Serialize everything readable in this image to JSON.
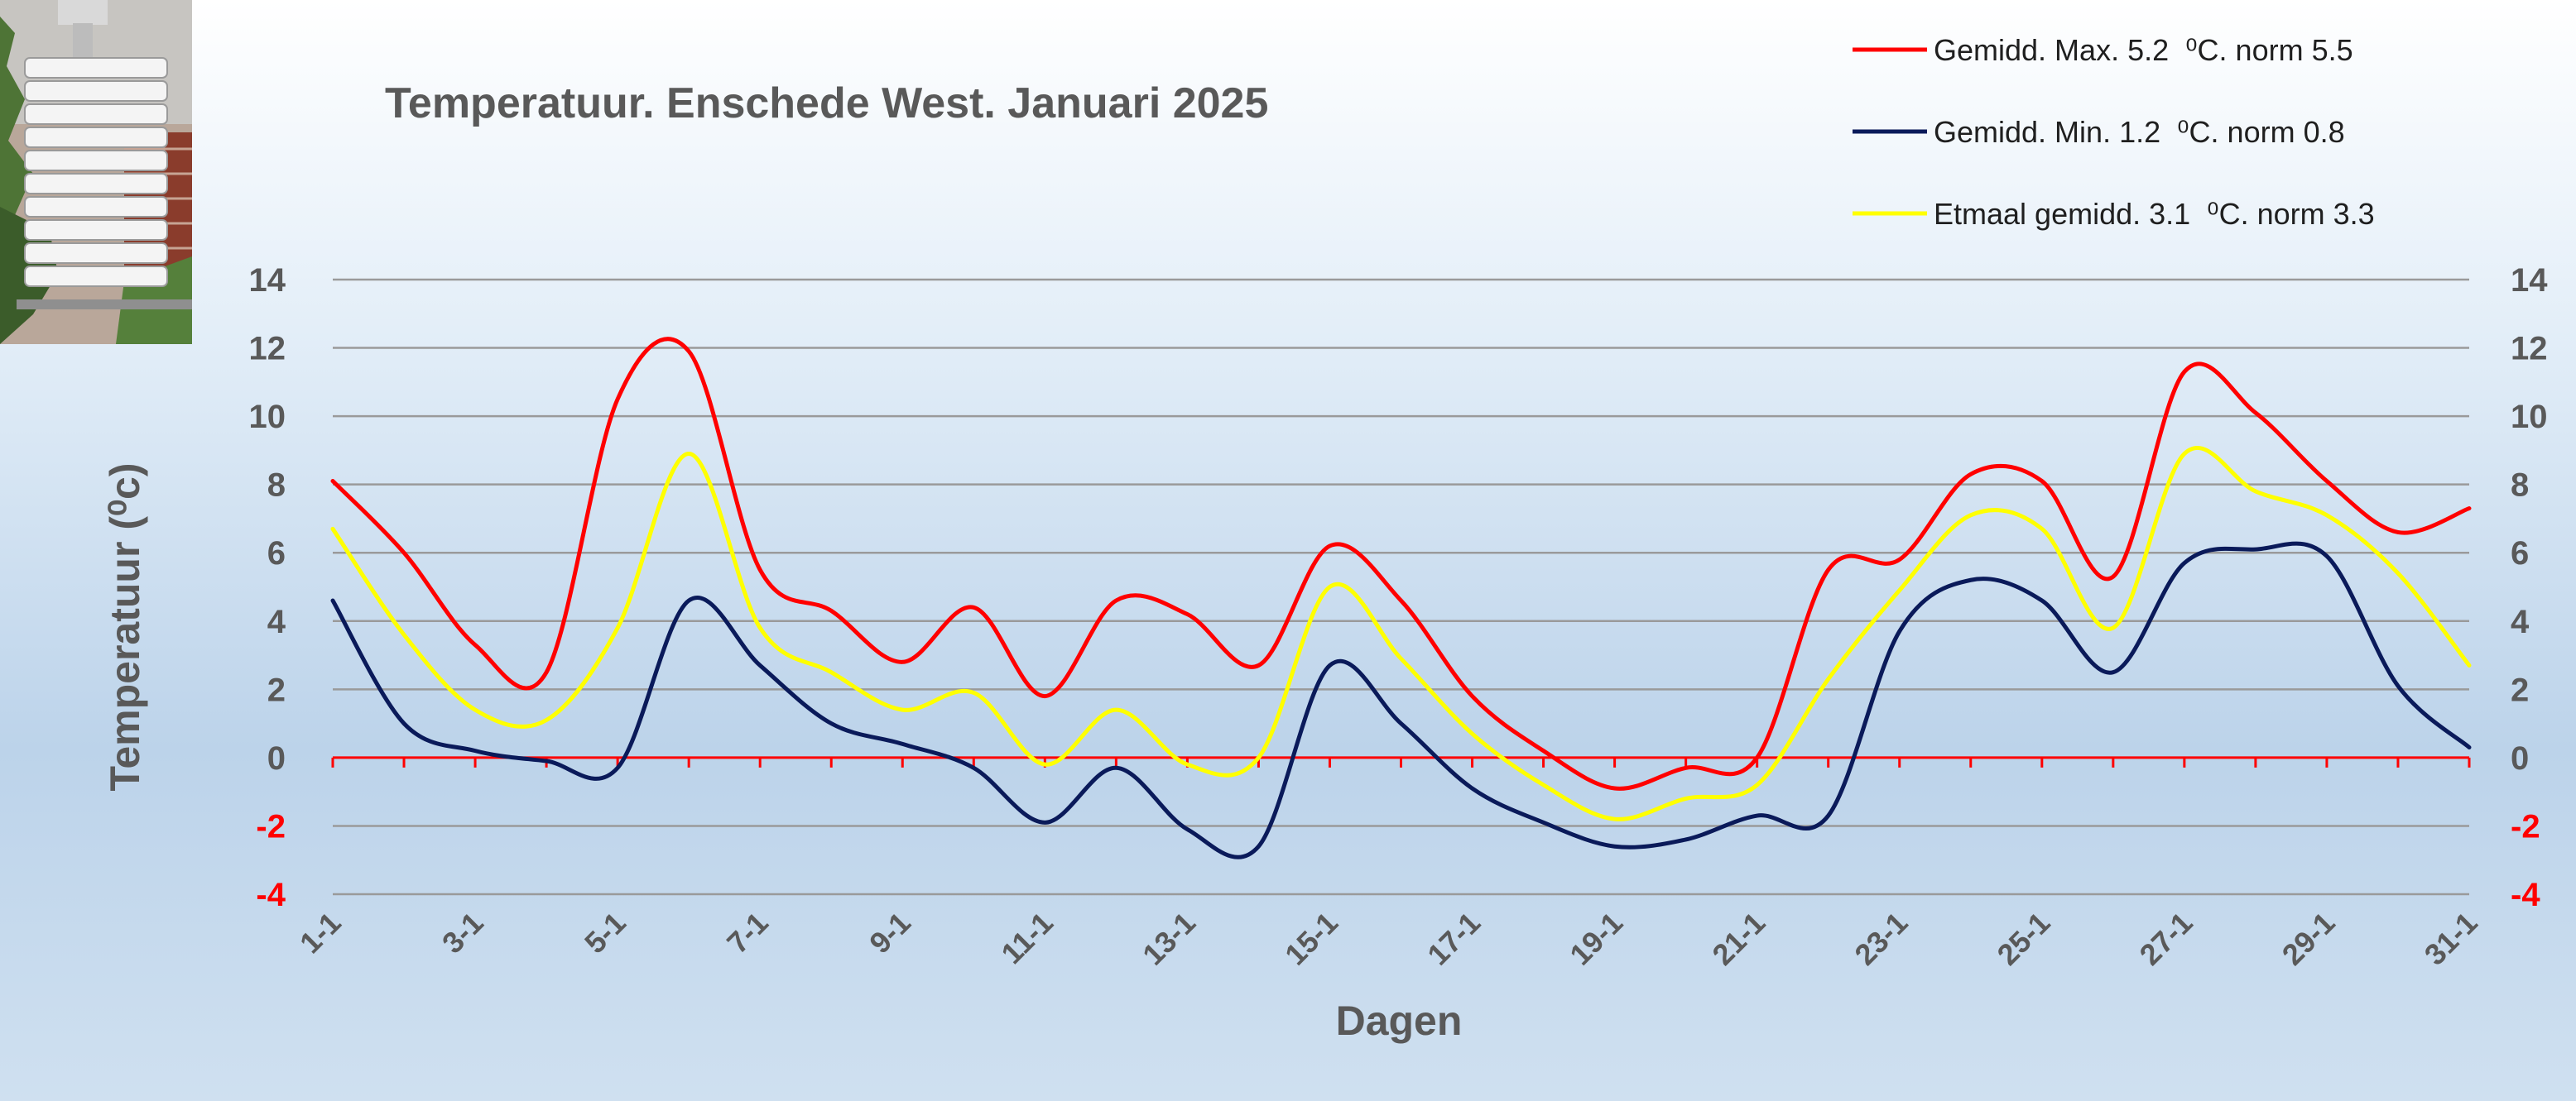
{
  "chart_data": {
    "type": "line",
    "title": "Temperatuur. Enschede West. Januari 2025",
    "xlabel": "Dagen",
    "ylabel": "Temperatuur (⁰c)",
    "ylim": [
      -4,
      14
    ],
    "yticks": [
      14,
      12,
      10,
      8,
      6,
      4,
      2,
      0,
      -2,
      -4
    ],
    "x": [
      "1-1",
      "2-1",
      "3-1",
      "4-1",
      "5-1",
      "6-1",
      "7-1",
      "8-1",
      "9-1",
      "10-1",
      "11-1",
      "12-1",
      "13-1",
      "14-1",
      "15-1",
      "16-1",
      "17-1",
      "18-1",
      "19-1",
      "20-1",
      "21-1",
      "22-1",
      "23-1",
      "24-1",
      "25-1",
      "26-1",
      "27-1",
      "28-1",
      "29-1",
      "30-1",
      "31-1"
    ],
    "xtick_labels": [
      "1-1",
      "3-1",
      "5-1",
      "7-1",
      "9-1",
      "11-1",
      "13-1",
      "15-1",
      "17-1",
      "19-1",
      "21-1",
      "23-1",
      "25-1",
      "27-1",
      "29-1",
      "31-1"
    ],
    "grid": true,
    "legend_position": "top-right",
    "zero_line_color": "#ff0000",
    "negative_tick_color": "#ff0000",
    "series": [
      {
        "legend_text": "Gemidd. Max. 5.2  ⁰C. norm 5.5",
        "color": "#ff0000",
        "values": [
          8.1,
          6.0,
          3.3,
          2.5,
          10.5,
          11.9,
          5.5,
          4.3,
          2.8,
          4.4,
          1.8,
          4.6,
          4.2,
          2.7,
          6.2,
          4.6,
          1.8,
          0.2,
          -0.9,
          -0.3,
          0.0,
          5.5,
          5.8,
          8.3,
          8.1,
          5.3,
          11.3,
          10.1,
          8.1,
          6.6,
          7.3
        ]
      },
      {
        "legend_text": "Gemidd. Min. 1.2  ⁰C. norm 0.8",
        "color": "#0a1a5a",
        "values": [
          4.6,
          1.0,
          0.2,
          -0.1,
          -0.3,
          4.6,
          2.7,
          1.0,
          0.4,
          -0.3,
          -1.9,
          -0.3,
          -2.1,
          -2.6,
          2.7,
          1.0,
          -0.9,
          -1.9,
          -2.6,
          -2.4,
          -1.7,
          -1.7,
          3.7,
          5.2,
          4.6,
          2.5,
          5.7,
          6.1,
          5.9,
          2.1,
          0.3
        ]
      },
      {
        "legend_text": "Etmaal gemidd. 3.1  ⁰C. norm 3.3",
        "color": "#ffff00",
        "values": [
          6.7,
          3.6,
          1.4,
          1.1,
          3.8,
          8.9,
          3.8,
          2.5,
          1.4,
          1.9,
          -0.2,
          1.4,
          -0.2,
          0.0,
          5.0,
          2.9,
          0.7,
          -0.8,
          -1.8,
          -1.2,
          -0.8,
          2.3,
          4.9,
          7.1,
          6.7,
          3.8,
          8.9,
          7.8,
          7.1,
          5.4,
          2.7
        ]
      }
    ]
  },
  "photo": {
    "description_icon": "weather-station-radiation-shield-photo"
  }
}
